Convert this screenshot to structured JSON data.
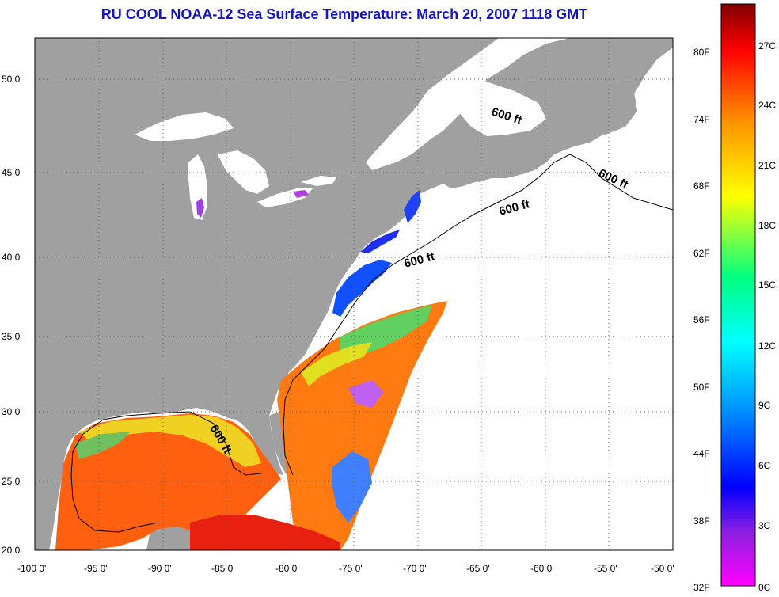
{
  "title": "RU COOL  NOAA-12  Sea Surface Temperature:  March 20, 2007 1118 GMT",
  "map": {
    "lon_range": [
      -100,
      -50
    ],
    "lat_range": [
      20,
      52.5
    ],
    "lon_ticks": [
      "-100 0'",
      "-95 0'",
      "-90 0'",
      "-85 0'",
      "-80 0'",
      "-75 0'",
      "-70 0'",
      "-65 0'",
      "-60 0'",
      "-55 0'",
      "-50 0'"
    ],
    "lat_ticks": [
      "20 0'",
      "25 0'",
      "30 0'",
      "35 0'",
      "40 0'",
      "45 0'",
      "50 0'"
    ],
    "grid": "dotted",
    "land_color": "#a0a0a0",
    "cloud_color": "#ffffff",
    "contour_labels": [
      "600 ft",
      "600 ft",
      "600 ft",
      "600 ft",
      "600 ft"
    ]
  },
  "colorbar": {
    "fahrenheit_labels": [
      "80F",
      "74F",
      "68F",
      "62F",
      "56F",
      "50F",
      "44F",
      "38F",
      "32F"
    ],
    "celsius_labels": [
      "27C",
      "24C",
      "21C",
      "18C",
      "15C",
      "12C",
      "9C",
      "6C",
      "3C",
      "0C"
    ],
    "colors": [
      "#ff00ff",
      "#8020e0",
      "#0000ff",
      "#0090ff",
      "#00ffff",
      "#00ff80",
      "#ffff00",
      "#ff9000",
      "#ff0000",
      "#800000"
    ]
  }
}
